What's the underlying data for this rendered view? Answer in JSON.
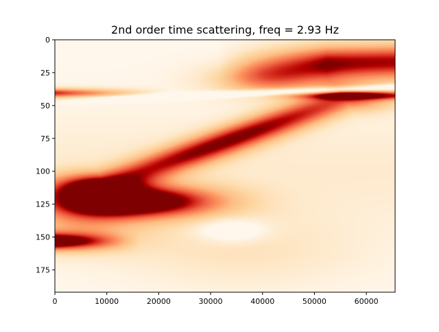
{
  "chart_data": {
    "type": "heatmap",
    "title": "2nd order time scattering, freq = 2.93 Hz",
    "xlabel": "",
    "ylabel": "",
    "xlim": [
      0,
      65536
    ],
    "ylim": [
      192,
      0
    ],
    "y_inverted": true,
    "colormap": "OrRd-like (white → orange → dark red)",
    "x_ticks": [
      "0",
      "10000",
      "20000",
      "30000",
      "40000",
      "50000",
      "60000"
    ],
    "x_tick_values": [
      0,
      10000,
      20000,
      30000,
      40000,
      50000,
      60000
    ],
    "y_ticks": [
      "0",
      "25",
      "50",
      "75",
      "100",
      "125",
      "150",
      "175"
    ],
    "y_tick_values": [
      0,
      25,
      50,
      75,
      100,
      125,
      150,
      175
    ],
    "grid": false,
    "legend": "none",
    "features": [
      {
        "x": [
          50000,
          65536
        ],
        "y": [
          5,
          35
        ],
        "intensity": 0.95
      },
      {
        "x": [
          0,
          20000
        ],
        "y": [
          38,
          44
        ],
        "intensity": 0.85
      },
      {
        "x": [
          38000,
          50000
        ],
        "y": [
          50,
          70
        ],
        "intensity": 0.95
      },
      {
        "x": [
          20000,
          35000
        ],
        "y": [
          80,
          95
        ],
        "intensity": 0.9
      },
      {
        "x": [
          10000,
          30000
        ],
        "y": [
          115,
          132
        ],
        "intensity": 1.0
      },
      {
        "x": [
          0,
          10000
        ],
        "y": [
          148,
          158
        ],
        "intensity": 0.95
      }
    ]
  }
}
